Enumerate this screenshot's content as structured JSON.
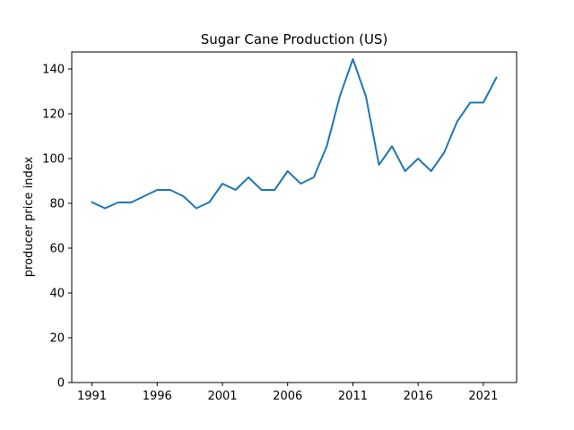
{
  "chart_data": {
    "type": "line",
    "title": "Sugar Cane Production (US)",
    "xlabel": "",
    "ylabel": "producer price index",
    "x": [
      1991,
      1992,
      1993,
      1994,
      1995,
      1996,
      1997,
      1998,
      1999,
      2000,
      2001,
      2002,
      2003,
      2004,
      2005,
      2006,
      2007,
      2008,
      2009,
      2010,
      2011,
      2012,
      2013,
      2014,
      2015,
      2016,
      2017,
      2018,
      2019,
      2020,
      2021,
      2022
    ],
    "series": [
      {
        "color": "#1f77b4",
        "values": [
          80.5,
          77.8,
          80.4,
          80.4,
          83.2,
          86.0,
          86.0,
          83.2,
          77.8,
          80.5,
          88.8,
          86.0,
          91.6,
          86.0,
          86.0,
          94.4,
          88.8,
          91.6,
          105.5,
          127.8,
          144.4,
          127.8,
          97.2,
          105.5,
          94.4,
          100.0,
          94.4,
          102.7,
          116.6,
          125.0,
          125.0,
          136.1
        ]
      }
    ],
    "xticks": [
      "1991",
      "1996",
      "2001",
      "2006",
      "2011",
      "2016",
      "2021"
    ],
    "yticks": [
      "0",
      "20",
      "40",
      "60",
      "80",
      "100",
      "120",
      "140"
    ],
    "xlim": [
      1989.45,
      2023.55
    ],
    "ylim": [
      0,
      147.6
    ],
    "grid": false,
    "legend": "none"
  }
}
